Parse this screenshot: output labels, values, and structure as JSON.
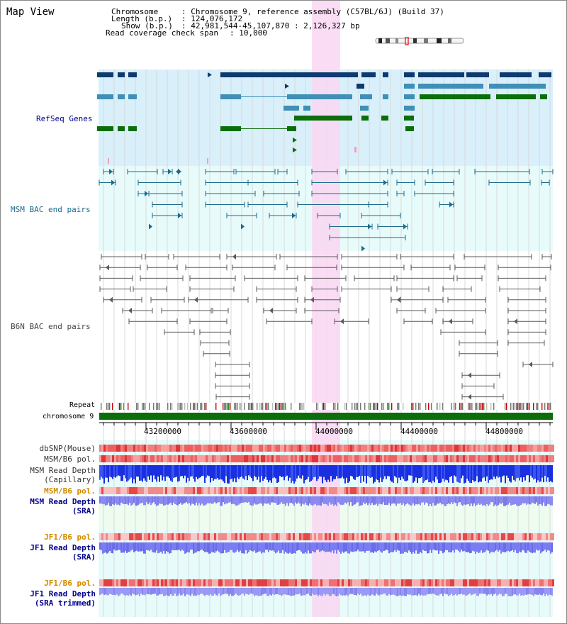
{
  "header": {
    "map_title": "Map View",
    "chromosome_label": "Chromosome",
    "chromosome_value": ": Chromosome 9, reference assembly (C57BL/6J) (Build 37)",
    "length_label": "Length (b.p.)",
    "length_value": ": 124,076,172",
    "show_label": "Show (b.p.)",
    "show_value": ": 42,981,544-45,107,870 : 2,126,327 bp",
    "coverage_label": "Read coverage check span",
    "coverage_value": ": 10,000"
  },
  "tracks": {
    "refseq": "RefSeq Genes",
    "msm_bac": "MSM BAC end pairs",
    "b6n_bac": "B6N BAC end pairs",
    "repeat": "Repeat",
    "chromosome": "chromosome 9",
    "dbsnp": "dbSNP(Mouse)",
    "msm_b6_pol_1": "MSM/B6 pol.",
    "msm_read_depth_cap_1": "MSM Read Depth",
    "msm_read_depth_cap_2": "(Capillary)",
    "msm_b6_pol_2": "MSM/B6 pol.",
    "msm_read_depth_sra_1": "MSM Read Depth",
    "msm_read_depth_sra_2": "(SRA)",
    "jf1_b6_pol_1": "JF1/B6 pol.",
    "jf1_read_depth_sra_1": "JF1 Read Depth",
    "jf1_read_depth_sra_2": "(SRA)",
    "jf1_b6_pol_2": "JF1/B6 pol.",
    "jf1_read_depth_trim_1": "JF1 Read Depth",
    "jf1_read_depth_trim_2": "(SRA trimmed)"
  },
  "axis": {
    "ticks": [
      "43200000",
      "43600000",
      "44000000",
      "44400000",
      "44800000"
    ]
  },
  "colors": {
    "refseq_bg": "#d9f0fb",
    "msm_bg": "#e8fbfb",
    "b6n_bg": "#ffffff",
    "highlight": "#f9d7f2",
    "gene_dark": "#0e3a6e",
    "gene_mid": "#3f8fb7",
    "gene_green": "#0b6e0b",
    "msm_line": "#1c6a8c",
    "b6n_line": "#5a5a5a",
    "label_blue": "#00008b",
    "label_orange": "#d08a00",
    "depth_blue": "#1a2fe0",
    "depth_lav": "#8a8af0"
  }
}
